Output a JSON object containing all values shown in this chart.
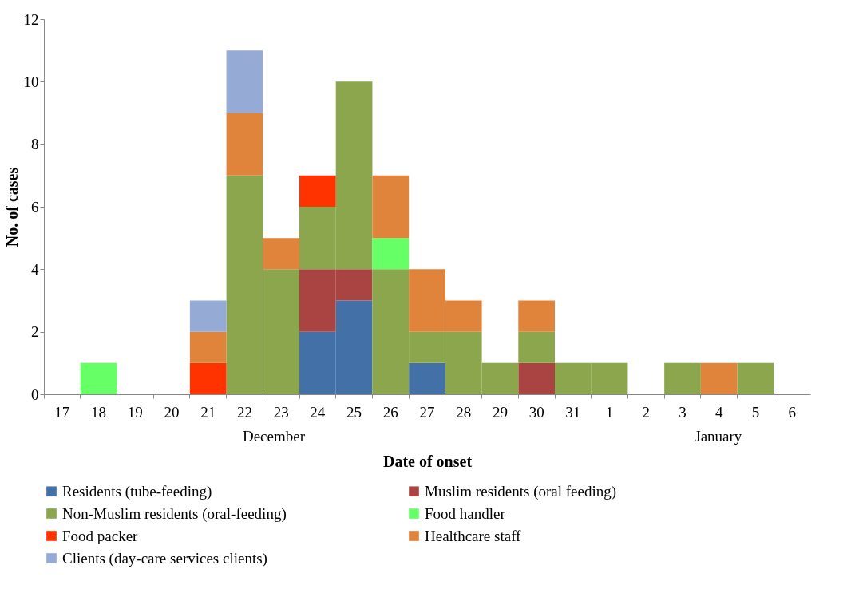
{
  "chart_data": {
    "type": "bar",
    "stacked": true,
    "xlabel": "Date of onset",
    "ylabel": "No. of cases",
    "categories": [
      "17",
      "18",
      "19",
      "20",
      "21",
      "22",
      "23",
      "24",
      "25",
      "26",
      "27",
      "28",
      "29",
      "30",
      "31",
      "1",
      "2",
      "3",
      "4",
      "5",
      "6"
    ],
    "series": [
      {
        "name": "Residents (tube-feeding)",
        "color": "#4470a8",
        "values": [
          null,
          null,
          null,
          null,
          null,
          null,
          null,
          2,
          3,
          null,
          1,
          null,
          null,
          null,
          null,
          null,
          null,
          null,
          null,
          null,
          null
        ]
      },
      {
        "name": "Muslim residents (oral feeding)",
        "color": "#a94442",
        "values": [
          null,
          null,
          null,
          null,
          null,
          null,
          null,
          2,
          1,
          null,
          null,
          null,
          null,
          1,
          null,
          null,
          null,
          null,
          null,
          null,
          null
        ]
      },
      {
        "name": "Non-Muslim residents (oral-feeding)",
        "color": "#8ba64c",
        "values": [
          null,
          null,
          null,
          null,
          null,
          7,
          4,
          2,
          6,
          4,
          1,
          2,
          1,
          1,
          1,
          1,
          null,
          1,
          null,
          1,
          null
        ]
      },
      {
        "name": "Food handler",
        "color": "#66ff66",
        "values": [
          null,
          1,
          null,
          null,
          null,
          null,
          null,
          null,
          null,
          1,
          null,
          null,
          null,
          null,
          null,
          null,
          null,
          null,
          null,
          null,
          null
        ]
      },
      {
        "name": "Food packer",
        "color": "#ff3300",
        "values": [
          null,
          null,
          null,
          null,
          1,
          null,
          null,
          1,
          null,
          null,
          null,
          null,
          null,
          null,
          null,
          null,
          null,
          null,
          null,
          null,
          null
        ]
      },
      {
        "name": "Healthcare staff",
        "color": "#e0843c",
        "values": [
          null,
          null,
          null,
          null,
          1,
          2,
          1,
          null,
          null,
          2,
          2,
          1,
          null,
          1,
          null,
          null,
          null,
          null,
          1,
          null,
          null
        ]
      },
      {
        "name": "Clients (day-care services clients)",
        "color": "#95abd5",
        "values": [
          null,
          null,
          null,
          null,
          1,
          2,
          null,
          null,
          null,
          null,
          null,
          null,
          null,
          null,
          null,
          null,
          null,
          null,
          null,
          null,
          null
        ]
      }
    ],
    "ylim": [
      0,
      12
    ],
    "yticks": [
      0,
      2,
      4,
      6,
      8,
      10,
      12
    ],
    "grid": false,
    "legend": "bottom",
    "annotations": [
      "December",
      "January"
    ]
  }
}
